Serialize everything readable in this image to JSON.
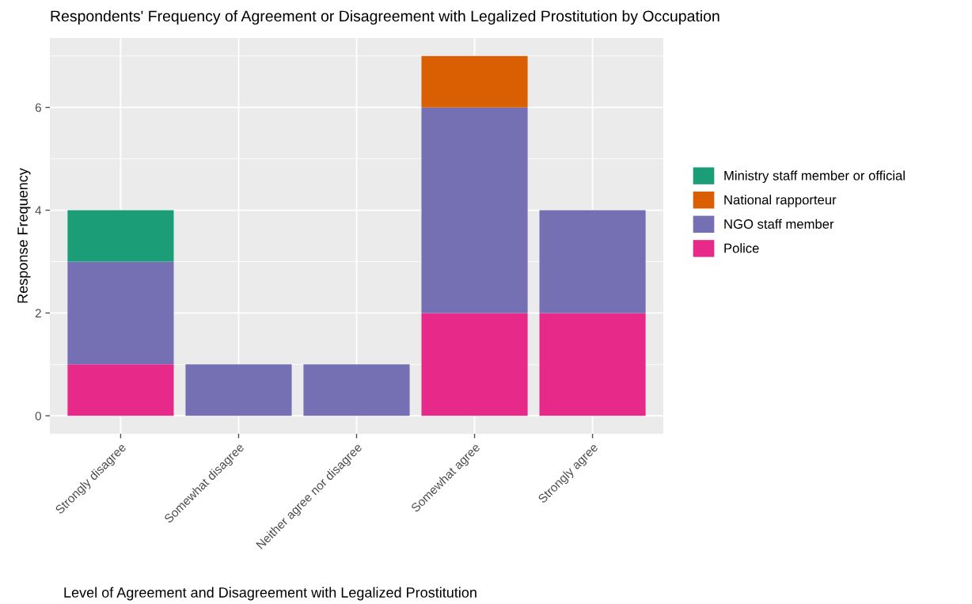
{
  "chart_data": {
    "type": "bar",
    "title": "Respondents' Frequency of Agreement or Disagreement with Legalized Prostitution by Occupation",
    "xlabel": "Level of Agreement and Disagreement with Legalized Prostitution",
    "ylabel": "Response Frequency",
    "categories": [
      "Strongly disagree",
      "Somewhat disagree",
      "Neither agree nor disagree",
      "Somewhat agree",
      "Strongly agree"
    ],
    "stacked": true,
    "series": [
      {
        "name": "Police",
        "color": "#e7298a",
        "values": [
          1,
          null,
          null,
          2,
          2
        ]
      },
      {
        "name": "NGO staff member",
        "color": "#7570b3",
        "values": [
          2,
          1,
          1,
          4,
          2
        ]
      },
      {
        "name": "National rapporteur",
        "color": "#d95f02",
        "values": [
          null,
          null,
          null,
          1,
          null
        ]
      },
      {
        "name": "Ministry staff member or official",
        "color": "#1b9e77",
        "values": [
          1,
          null,
          null,
          null,
          null
        ]
      }
    ],
    "ylim": [
      -0.35,
      7.35
    ],
    "yticks": [
      0,
      2,
      4,
      6
    ],
    "grid": true,
    "legend": "right"
  }
}
